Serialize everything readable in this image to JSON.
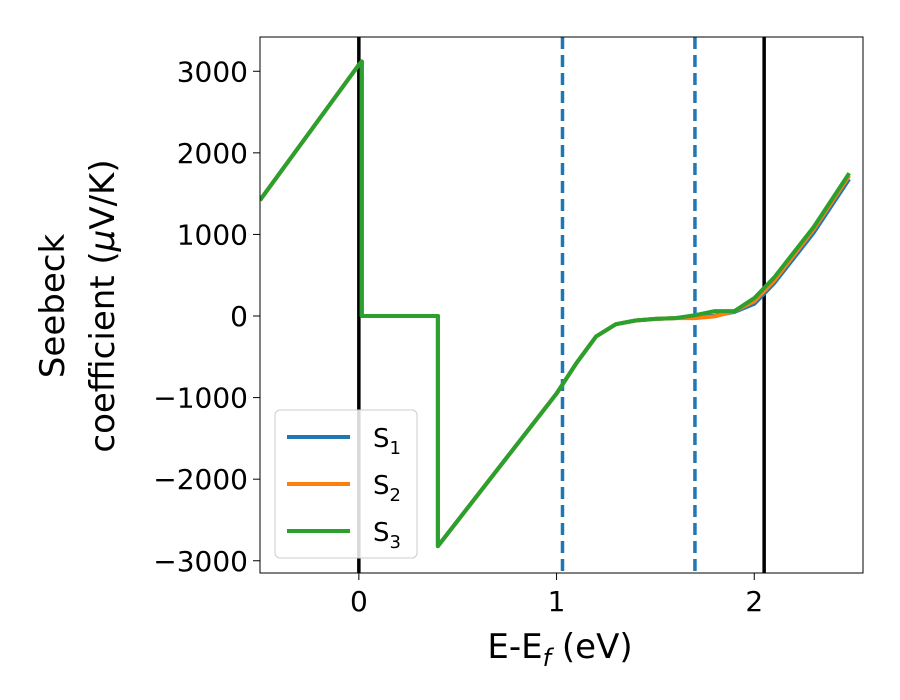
{
  "chart_data": {
    "type": "line",
    "xlabel": "E-E",
    "xlabel_sub": "f",
    "xlabel_unit": " (eV)",
    "ylabel_line1": "Seebeck",
    "ylabel_line2": "coefficient  (",
    "ylabel_mu": "μ",
    "ylabel_unit": "V/K)",
    "xlim": [
      -0.5,
      2.55
    ],
    "ylim": [
      -3150,
      3420
    ],
    "xticks": [
      0,
      1,
      2
    ],
    "yticks": [
      -3000,
      -2000,
      -1000,
      0,
      1000,
      2000,
      3000
    ],
    "xtick_labels": [
      "0",
      "1",
      "2"
    ],
    "ytick_labels": [
      "−3000",
      "−2000",
      "−1000",
      "0",
      "1000",
      "2000",
      "3000"
    ],
    "vlines": [
      {
        "x": 0.0,
        "style": "solid",
        "color": "#000000"
      },
      {
        "x": 2.05,
        "style": "solid",
        "color": "#000000"
      },
      {
        "x": 1.03,
        "style": "dashed",
        "color": "#1f77b4"
      },
      {
        "x": 1.7,
        "style": "dashed",
        "color": "#1f77b4"
      }
    ],
    "legend_position": "lower-left",
    "series": [
      {
        "name": "S",
        "sub": "1",
        "color": "#1f77b4",
        "points": [
          [
            -0.5,
            1420
          ],
          [
            0.0,
            3080
          ],
          [
            0.015,
            3120
          ],
          [
            0.015,
            0
          ],
          [
            0.4,
            0
          ],
          [
            0.4,
            -2820
          ],
          [
            1.0,
            -950
          ],
          [
            1.1,
            -580
          ],
          [
            1.2,
            -250
          ],
          [
            1.3,
            -100
          ],
          [
            1.4,
            -55
          ],
          [
            1.5,
            -35
          ],
          [
            1.6,
            -25
          ],
          [
            1.7,
            -15
          ],
          [
            1.8,
            5
          ],
          [
            1.9,
            50
          ],
          [
            2.0,
            150
          ],
          [
            2.1,
            400
          ],
          [
            2.3,
            1020
          ],
          [
            2.48,
            1680
          ]
        ]
      },
      {
        "name": "S",
        "sub": "2",
        "color": "#ff7f0e",
        "points": [
          [
            -0.5,
            1420
          ],
          [
            0.0,
            3080
          ],
          [
            0.015,
            3120
          ],
          [
            0.015,
            0
          ],
          [
            0.4,
            0
          ],
          [
            0.4,
            -2820
          ],
          [
            1.0,
            -950
          ],
          [
            1.1,
            -580
          ],
          [
            1.2,
            -250
          ],
          [
            1.3,
            -100
          ],
          [
            1.4,
            -55
          ],
          [
            1.5,
            -35
          ],
          [
            1.6,
            -25
          ],
          [
            1.7,
            -25
          ],
          [
            1.8,
            -5
          ],
          [
            1.9,
            60
          ],
          [
            2.0,
            180
          ],
          [
            2.1,
            430
          ],
          [
            2.3,
            1060
          ],
          [
            2.48,
            1720
          ]
        ]
      },
      {
        "name": "S",
        "sub": "3",
        "color": "#2ca02c",
        "points": [
          [
            -0.5,
            1420
          ],
          [
            0.0,
            3080
          ],
          [
            0.015,
            3120
          ],
          [
            0.015,
            0
          ],
          [
            0.4,
            0
          ],
          [
            0.4,
            -2820
          ],
          [
            1.0,
            -950
          ],
          [
            1.1,
            -580
          ],
          [
            1.2,
            -250
          ],
          [
            1.3,
            -100
          ],
          [
            1.4,
            -55
          ],
          [
            1.5,
            -35
          ],
          [
            1.6,
            -25
          ],
          [
            1.7,
            10
          ],
          [
            1.8,
            60
          ],
          [
            1.9,
            60
          ],
          [
            2.0,
            220
          ],
          [
            2.1,
            470
          ],
          [
            2.3,
            1090
          ],
          [
            2.48,
            1750
          ]
        ]
      }
    ]
  }
}
